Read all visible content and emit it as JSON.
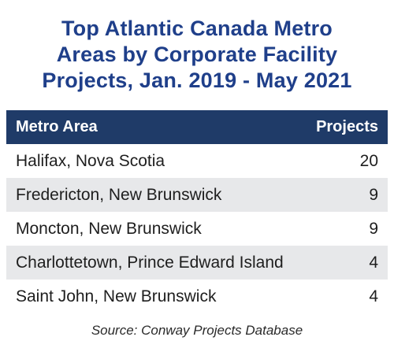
{
  "chart_data": {
    "type": "table",
    "title_lines": [
      "Top Atlantic Canada Metro",
      "Areas by Corporate Facility",
      "Projects, Jan. 2019 - May 2021"
    ],
    "columns": [
      "Metro Area",
      "Projects"
    ],
    "rows": [
      {
        "area": "Halifax, Nova Scotia",
        "projects": 20
      },
      {
        "area": "Fredericton, New Brunswick",
        "projects": 9
      },
      {
        "area": "Moncton, New Brunswick",
        "projects": 9
      },
      {
        "area": "Charlottetown, Prince Edward Island",
        "projects": 4
      },
      {
        "area": "Saint John, New Brunswick",
        "projects": 4
      }
    ],
    "source": "Source: Conway Projects Database"
  },
  "colors": {
    "title": "#1f3f8a",
    "header_bg": "#1f3b68",
    "header_text": "#ffffff",
    "alt_row_bg": "#e7e8ea",
    "row_bg": "#ffffff"
  }
}
